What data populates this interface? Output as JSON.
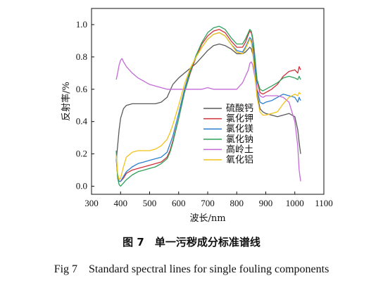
{
  "caption": {
    "cn": "图 7　单一污秽成分标准谱线",
    "en": "Fig 7　Standard spectral lines for single fouling components"
  },
  "chart_data": {
    "type": "line",
    "title": "",
    "xlabel": "波长/nm",
    "ylabel": "反射率/%",
    "xlim": [
      300,
      1100
    ],
    "ylim": [
      -0.05,
      1.1
    ],
    "xticks": [
      300,
      400,
      500,
      600,
      700,
      800,
      900,
      1000,
      1100
    ],
    "yticks": [
      0.0,
      0.2,
      0.4,
      0.6,
      0.8,
      1.0
    ],
    "ytick_labels": [
      "0.0",
      "0.2",
      "0.4",
      "0.6",
      "0.8",
      "1.0"
    ],
    "legend_position": "center-right",
    "series": [
      {
        "name": "硫酸钙",
        "color": "#5a5a5a",
        "x": [
          385,
          390,
          395,
          400,
          410,
          420,
          440,
          460,
          480,
          500,
          520,
          540,
          560,
          570,
          580,
          600,
          620,
          640,
          660,
          680,
          700,
          720,
          740,
          760,
          780,
          800,
          820,
          830,
          840,
          845,
          850,
          855,
          860,
          870,
          880,
          890,
          900,
          920,
          940,
          960,
          980,
          1000,
          1010,
          1015,
          1020
        ],
        "y": [
          0.16,
          0.25,
          0.35,
          0.42,
          0.48,
          0.5,
          0.51,
          0.51,
          0.51,
          0.51,
          0.51,
          0.52,
          0.55,
          0.59,
          0.63,
          0.67,
          0.7,
          0.73,
          0.76,
          0.8,
          0.84,
          0.87,
          0.88,
          0.87,
          0.85,
          0.82,
          0.82,
          0.83,
          0.85,
          0.86,
          0.85,
          0.82,
          0.77,
          0.57,
          0.48,
          0.46,
          0.45,
          0.44,
          0.43,
          0.44,
          0.45,
          0.43,
          0.35,
          0.27,
          0.2
        ]
      },
      {
        "name": "氯化钾",
        "color": "#d0303a",
        "x": [
          385,
          390,
          395,
          400,
          410,
          420,
          440,
          460,
          480,
          500,
          520,
          540,
          560,
          570,
          580,
          600,
          620,
          640,
          660,
          680,
          700,
          720,
          740,
          760,
          780,
          800,
          820,
          830,
          840,
          845,
          850,
          855,
          860,
          870,
          880,
          890,
          900,
          920,
          940,
          960,
          980,
          1000,
          1010,
          1015,
          1020
        ],
        "y": [
          0.17,
          0.06,
          0.03,
          0.03,
          0.05,
          0.08,
          0.1,
          0.11,
          0.12,
          0.13,
          0.14,
          0.15,
          0.18,
          0.22,
          0.28,
          0.42,
          0.58,
          0.7,
          0.8,
          0.88,
          0.93,
          0.96,
          0.97,
          0.95,
          0.9,
          0.86,
          0.86,
          0.89,
          0.94,
          0.96,
          0.95,
          0.91,
          0.83,
          0.65,
          0.58,
          0.57,
          0.58,
          0.6,
          0.63,
          0.68,
          0.71,
          0.72,
          0.7,
          0.74,
          0.72
        ]
      },
      {
        "name": "氯化镁",
        "color": "#2b7fd0",
        "x": [
          385,
          390,
          395,
          400,
          410,
          420,
          440,
          460,
          480,
          500,
          520,
          540,
          560,
          570,
          580,
          600,
          620,
          640,
          660,
          680,
          700,
          720,
          740,
          760,
          780,
          800,
          820,
          830,
          840,
          845,
          850,
          855,
          860,
          870,
          880,
          890,
          900,
          920,
          940,
          960,
          980,
          1000,
          1010,
          1015,
          1020
        ],
        "y": [
          0.17,
          0.06,
          0.03,
          0.03,
          0.06,
          0.09,
          0.12,
          0.14,
          0.15,
          0.16,
          0.17,
          0.18,
          0.21,
          0.26,
          0.31,
          0.45,
          0.6,
          0.72,
          0.8,
          0.86,
          0.91,
          0.94,
          0.95,
          0.93,
          0.88,
          0.84,
          0.83,
          0.86,
          0.9,
          0.92,
          0.91,
          0.86,
          0.78,
          0.6,
          0.52,
          0.51,
          0.52,
          0.53,
          0.55,
          0.57,
          0.56,
          0.55,
          0.52,
          0.55,
          0.53
        ]
      },
      {
        "name": "氯化钠",
        "color": "#2fa05a",
        "x": [
          385,
          390,
          395,
          400,
          410,
          420,
          440,
          460,
          480,
          500,
          520,
          540,
          560,
          570,
          580,
          600,
          620,
          640,
          660,
          680,
          700,
          720,
          740,
          760,
          780,
          800,
          820,
          830,
          840,
          845,
          850,
          855,
          860,
          870,
          880,
          890,
          900,
          920,
          940,
          960,
          980,
          1000,
          1010,
          1015,
          1020
        ],
        "y": [
          0.22,
          0.05,
          0.01,
          0.0,
          0.02,
          0.04,
          0.07,
          0.09,
          0.1,
          0.11,
          0.12,
          0.14,
          0.17,
          0.21,
          0.27,
          0.42,
          0.58,
          0.71,
          0.81,
          0.89,
          0.95,
          0.98,
          0.99,
          0.97,
          0.92,
          0.88,
          0.88,
          0.91,
          0.95,
          0.97,
          0.96,
          0.92,
          0.85,
          0.66,
          0.6,
          0.59,
          0.6,
          0.62,
          0.64,
          0.67,
          0.68,
          0.67,
          0.66,
          0.68,
          0.66
        ]
      },
      {
        "name": "高岭土",
        "color": "#c46ad8",
        "x": [
          385,
          390,
          395,
          400,
          405,
          410,
          420,
          440,
          460,
          480,
          500,
          520,
          540,
          560,
          580,
          600,
          620,
          640,
          660,
          680,
          700,
          720,
          740,
          760,
          780,
          800,
          820,
          830,
          840,
          845,
          850,
          855,
          860,
          870,
          880,
          890,
          900,
          920,
          940,
          960,
          980,
          1000,
          1010,
          1015,
          1020
        ],
        "y": [
          0.66,
          0.7,
          0.75,
          0.78,
          0.79,
          0.77,
          0.74,
          0.7,
          0.67,
          0.65,
          0.63,
          0.62,
          0.61,
          0.6,
          0.6,
          0.6,
          0.6,
          0.6,
          0.6,
          0.6,
          0.61,
          0.6,
          0.6,
          0.6,
          0.6,
          0.6,
          0.64,
          0.68,
          0.72,
          0.76,
          0.77,
          0.75,
          0.7,
          0.6,
          0.56,
          0.55,
          0.56,
          0.56,
          0.56,
          0.55,
          0.52,
          0.4,
          0.25,
          0.1,
          0.03
        ]
      },
      {
        "name": "氧化铝",
        "color": "#f2c21a",
        "x": [
          385,
          390,
          395,
          400,
          410,
          420,
          440,
          460,
          480,
          500,
          520,
          540,
          560,
          570,
          580,
          600,
          620,
          640,
          660,
          680,
          700,
          720,
          740,
          760,
          780,
          800,
          820,
          830,
          840,
          845,
          850,
          855,
          860,
          870,
          880,
          890,
          900,
          920,
          940,
          960,
          980,
          1000,
          1010,
          1015,
          1020
        ],
        "y": [
          0.19,
          0.08,
          0.04,
          0.05,
          0.12,
          0.18,
          0.21,
          0.22,
          0.22,
          0.22,
          0.23,
          0.25,
          0.29,
          0.33,
          0.38,
          0.5,
          0.63,
          0.73,
          0.8,
          0.86,
          0.91,
          0.94,
          0.95,
          0.93,
          0.88,
          0.83,
          0.82,
          0.85,
          0.89,
          0.91,
          0.89,
          0.83,
          0.73,
          0.55,
          0.46,
          0.44,
          0.44,
          0.45,
          0.46,
          0.51,
          0.55,
          0.57,
          0.56,
          0.58,
          0.57
        ]
      }
    ]
  }
}
